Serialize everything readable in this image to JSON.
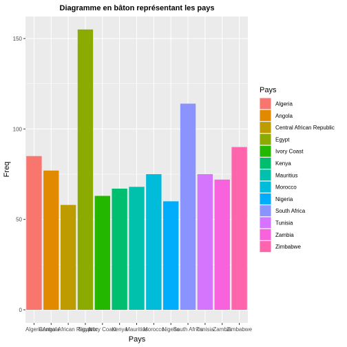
{
  "chart_data": {
    "type": "bar",
    "title": "Diagramme en bâton représentant les pays",
    "xlabel": "Pays",
    "ylabel": "Freq",
    "categories": [
      "Algeria",
      "Angola",
      "Central African Republic",
      "Egypt",
      "Ivory Coast",
      "Kenya",
      "Mauritius",
      "Morocco",
      "Nigeria",
      "South Africa",
      "Tunisia",
      "Zambia",
      "Zimbabwe"
    ],
    "values": [
      85,
      77,
      58,
      155,
      63,
      67,
      68,
      75,
      60,
      114,
      75,
      72,
      90
    ],
    "colors": [
      "#F8766D",
      "#E18A00",
      "#BE9C00",
      "#8CAB00",
      "#24B700",
      "#00BE70",
      "#00C1AB",
      "#00BBDA",
      "#00ACFC",
      "#8B93FF",
      "#D575FE",
      "#F962DD",
      "#FF65AC"
    ],
    "yticks": [
      0,
      50,
      100,
      150
    ],
    "ylim": [
      0,
      160
    ],
    "grid": true,
    "background": "#EBEBEB",
    "legend": {
      "title": "Pays",
      "position": "right"
    }
  }
}
